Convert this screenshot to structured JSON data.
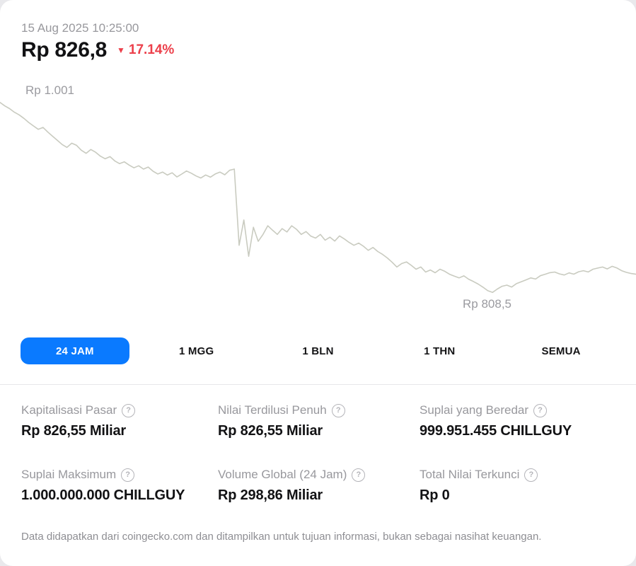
{
  "header": {
    "timestamp": "15 Aug 2025 10:25:00",
    "price": "Rp 826,8",
    "change_arrow": "▼",
    "change": "17.14%",
    "change_direction": "down"
  },
  "chart_data": {
    "type": "line",
    "title": "CHILLGUY price (24h)",
    "ylim": [
      798,
      1012
    ],
    "high_label": "Rp 1.001",
    "low_label": "Rp 808,5",
    "line_color": "#c9cbc0",
    "values": [
      1000.0,
      996.5,
      993.8,
      990.2,
      987.5,
      984.0,
      979.8,
      976.3,
      972.9,
      974.8,
      970.1,
      965.9,
      961.8,
      957.6,
      954.7,
      958.9,
      956.8,
      951.9,
      948.7,
      952.6,
      949.8,
      945.9,
      943.2,
      945.4,
      941.1,
      938.3,
      940.2,
      936.9,
      934.1,
      936.2,
      932.8,
      934.9,
      930.7,
      927.9,
      929.8,
      926.8,
      929.1,
      924.9,
      927.8,
      930.9,
      928.7,
      925.9,
      923.8,
      926.9,
      924.7,
      927.9,
      929.8,
      927.1,
      931.6,
      932.8,
      856.0,
      881.5,
      844.9,
      874.2,
      860.0,
      867.0,
      875.7,
      871.2,
      867.0,
      872.8,
      869.4,
      875.7,
      872.1,
      867.0,
      869.8,
      865.2,
      863.3,
      866.9,
      861.1,
      864.2,
      860.3,
      865.5,
      862.4,
      858.9,
      856.0,
      858.2,
      855.1,
      850.9,
      853.8,
      849.7,
      846.8,
      843.2,
      838.9,
      834.1,
      837.6,
      839.2,
      835.8,
      831.9,
      834.2,
      829.0,
      831.1,
      828.3,
      831.9,
      829.8,
      826.8,
      824.9,
      823.1,
      825.2,
      821.8,
      819.5,
      816.9,
      813.8,
      810.2,
      808.5,
      811.9,
      814.7,
      815.8,
      813.9,
      817.3,
      819.2,
      821.1,
      823.1,
      822.0,
      825.3,
      826.8,
      828.4,
      829.0,
      827.2,
      826.0,
      828.2,
      826.9,
      829.3,
      830.4,
      829.1,
      831.9,
      833.0,
      834.1,
      832.2,
      834.8,
      833.1,
      830.4,
      828.7,
      827.5,
      826.8
    ]
  },
  "tabs": [
    {
      "label": "24 JAM",
      "selected": true
    },
    {
      "label": "1 MGG",
      "selected": false
    },
    {
      "label": "1 BLN",
      "selected": false
    },
    {
      "label": "1 THN",
      "selected": false
    },
    {
      "label": "SEMUA",
      "selected": false
    }
  ],
  "stats": [
    {
      "label": "Kapitalisasi Pasar",
      "value": "Rp 826,55 Miliar"
    },
    {
      "label": "Nilai Terdilusi Penuh",
      "value": "Rp 826,55 Miliar"
    },
    {
      "label": "Suplai yang Beredar",
      "value": "999.951.455 CHILLGUY"
    },
    {
      "label": "Suplai Maksimum",
      "value": "1.000.000.000 CHILLGUY"
    },
    {
      "label": "Volume Global (24 Jam)",
      "value": "Rp 298,86 Miliar"
    },
    {
      "label": "Total Nilai Terkunci",
      "value": "Rp 0"
    }
  ],
  "footer": {
    "disclaimer": "Data didapatkan dari coingecko.com dan ditampilkan untuk tujuan informasi, bukan sebagai nasihat keuangan."
  },
  "icons": {
    "help": "?"
  },
  "colors": {
    "accent_blue": "#0a7aff",
    "negative_red": "#ec3f4a",
    "chart_line": "#c9cbc0",
    "muted_text": "#98989d"
  }
}
